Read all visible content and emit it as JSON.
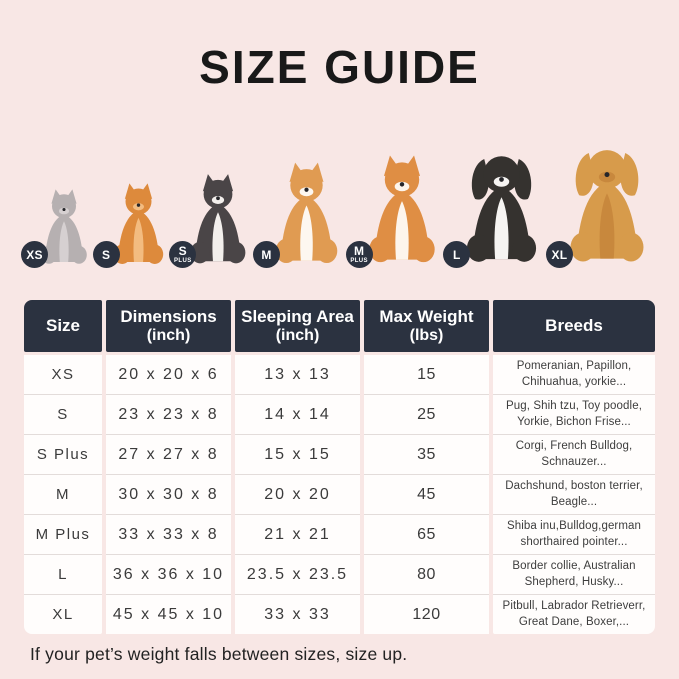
{
  "title": "SIZE GUIDE",
  "footer_note": "If your pet’s weight falls between sizes, size up.",
  "colors": {
    "background": "#f8e7e5",
    "header_navy": "#2b3240",
    "row_white": "#fffdfc",
    "row_border": "#e3dcda",
    "badge_navy": "#2b3240",
    "title_text": "#191919"
  },
  "animals": [
    {
      "name": "cat",
      "badge_main": "XS",
      "badge_sub": "",
      "height": 84,
      "ears": "pointy",
      "body": "#b6b0b1",
      "patch": "#d6d0d1"
    },
    {
      "name": "pomeranian",
      "badge_main": "S",
      "badge_sub": "",
      "height": 90,
      "ears": "pointy",
      "body": "#dd8a3c",
      "patch": "#f3bc80"
    },
    {
      "name": "french-bulldog",
      "badge_main": "S",
      "badge_sub": "PLUS",
      "height": 100,
      "ears": "pointy",
      "body": "#4a4547",
      "patch": "#f3efec"
    },
    {
      "name": "corgi",
      "badge_main": "M",
      "badge_sub": "",
      "height": 112,
      "ears": "pointy",
      "body": "#e09b52",
      "patch": "#fdf7f0"
    },
    {
      "name": "shiba-inu",
      "badge_main": "M",
      "badge_sub": "PLUS",
      "height": 120,
      "ears": "pointy",
      "body": "#df8e44",
      "patch": "#fdf5ec"
    },
    {
      "name": "border-collie",
      "badge_main": "L",
      "badge_sub": "",
      "height": 127,
      "ears": "floppy",
      "body": "#35322f",
      "patch": "#f6f4f2"
    },
    {
      "name": "golden-retriever",
      "badge_main": "XL",
      "badge_sub": "",
      "height": 134,
      "ears": "floppy",
      "body": "#d79b4b",
      "patch": "#c8883d"
    }
  ],
  "table": {
    "headers": [
      {
        "title": "Size",
        "sub": ""
      },
      {
        "title": "Dimensions",
        "sub": "(inch)"
      },
      {
        "title": "Sleeping Area",
        "sub": "(inch)"
      },
      {
        "title": "Max Weight",
        "sub": "(lbs)"
      },
      {
        "title": "Breeds",
        "sub": ""
      }
    ],
    "rows": [
      {
        "size": "XS",
        "dimensions": "20 x 20 x 6",
        "sleeping_area": "13 x 13",
        "max_weight": "15",
        "breeds": "Pomeranian, Papillon, Chihuahua, yorkie..."
      },
      {
        "size": "S",
        "dimensions": "23 x 23 x 8",
        "sleeping_area": "14 x 14",
        "max_weight": "25",
        "breeds": "Pug, Shih tzu, Toy poodle, Yorkie, Bichon Frise..."
      },
      {
        "size": "S Plus",
        "dimensions": "27 x 27 x 8",
        "sleeping_area": "15 x 15",
        "max_weight": "35",
        "breeds": "Corgi, French Bulldog, Schnauzer..."
      },
      {
        "size": "M",
        "dimensions": "30 x 30 x 8",
        "sleeping_area": "20 x 20",
        "max_weight": "45",
        "breeds": "Dachshund, boston terrier, Beagle..."
      },
      {
        "size": "M Plus",
        "dimensions": "33 x 33 x 8",
        "sleeping_area": "21 x 21",
        "max_weight": "65",
        "breeds": "Shiba inu,Bulldog,german shorthaired pointer..."
      },
      {
        "size": "L",
        "dimensions": "36 x 36 x 10",
        "sleeping_area": "23.5 x 23.5",
        "max_weight": "80",
        "breeds": "Border collie, Australian Shepherd, Husky..."
      },
      {
        "size": "XL",
        "dimensions": "45 x 45 x 10",
        "sleeping_area": "33 x 33",
        "max_weight": "120",
        "breeds": "Pitbull, Labrador Retrieverr, Great Dane, Boxer,..."
      }
    ]
  }
}
